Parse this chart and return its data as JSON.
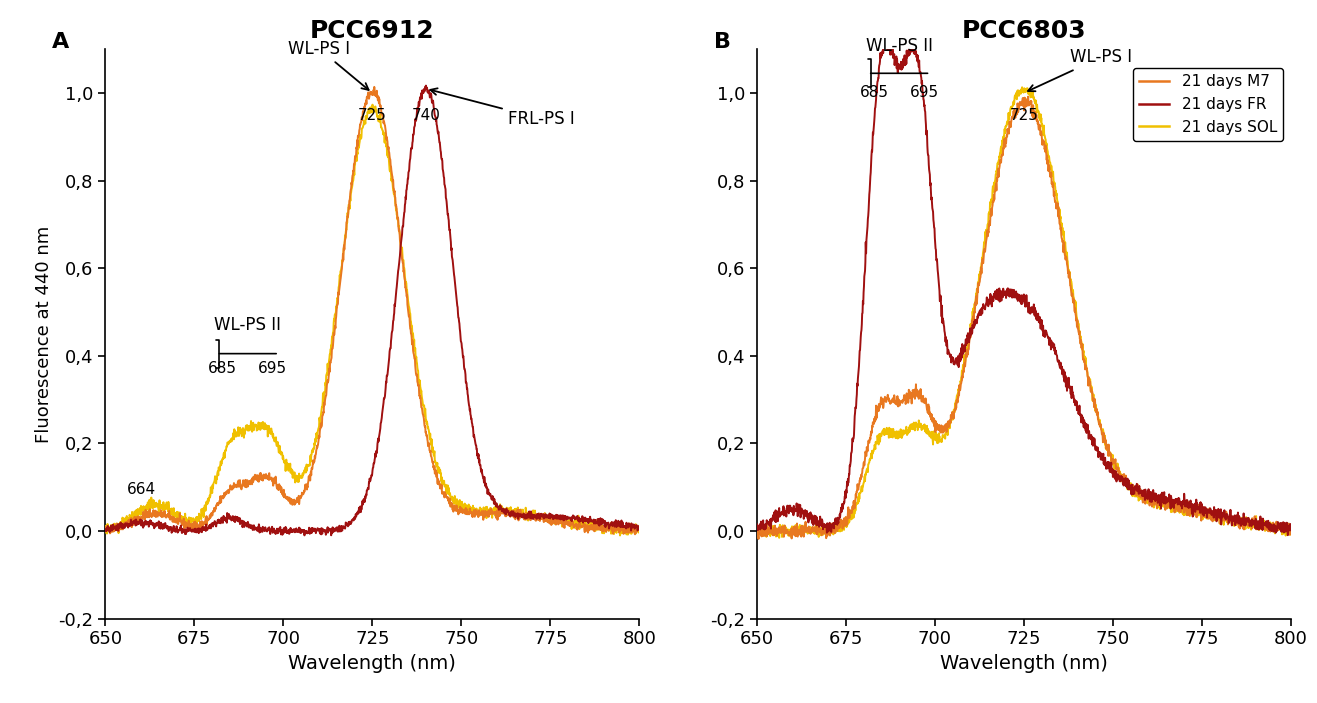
{
  "title_A": "PCC6912",
  "title_B": "PCC6803",
  "xlabel": "Wavelength (nm)",
  "ylabel": "Fluorescence at 440 nm",
  "xlim": [
    650,
    800
  ],
  "ylim": [
    -0.2,
    1.1
  ],
  "yticks": [
    -0.2,
    0.0,
    0.2,
    0.4,
    0.6,
    0.8,
    1.0
  ],
  "ytick_labels": [
    "-0,2",
    "0,0",
    "0,2",
    "0,4",
    "0,6",
    "0,8",
    "1,0"
  ],
  "xticks": [
    650,
    675,
    700,
    725,
    750,
    775,
    800
  ],
  "colors": {
    "M7": "#E87820",
    "FR": "#A01010",
    "SOL": "#F0C000"
  },
  "legend_labels": [
    "21 days M7",
    "21 days FR",
    "21 days SOL"
  ],
  "panel_labels": [
    "A",
    "B"
  ]
}
